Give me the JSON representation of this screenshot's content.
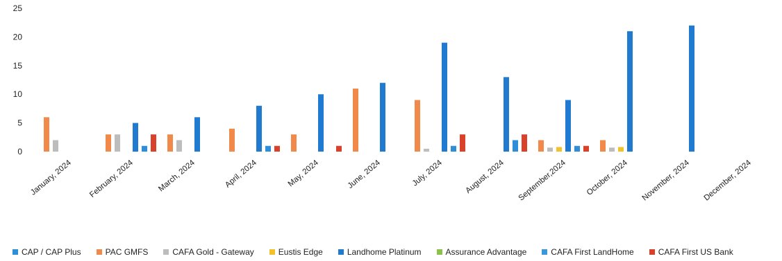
{
  "chart_data": {
    "type": "bar",
    "categories": [
      "January, 2024",
      "February, 2024",
      "March, 2024",
      "April, 2024",
      "May, 2024",
      "June, 2024",
      "July, 2024",
      "August, 2024",
      "September,2024",
      "October, 2024",
      "November, 2024",
      "December, 2024"
    ],
    "ylim": [
      0,
      25
    ],
    "yticks": [
      0,
      5,
      10,
      15,
      20,
      25
    ],
    "grid": false,
    "legend_position": "bottom",
    "series": [
      {
        "name": "CAP / CAP Plus",
        "color": "#2E8FD8",
        "values": [
          0,
          1,
          0,
          1,
          0,
          0,
          1,
          2,
          1,
          0,
          0,
          0
        ]
      },
      {
        "name": "PAC GMFS",
        "color": "#F0894A",
        "values": [
          6,
          3,
          3,
          4,
          3,
          11,
          9,
          0,
          2,
          2,
          0,
          0
        ]
      },
      {
        "name": "CAFA Gold - Gateway",
        "color": "#BDBDBD",
        "values": [
          2,
          3,
          2,
          0,
          0,
          0,
          0.5,
          0,
          0.7,
          0.7,
          0,
          0
        ]
      },
      {
        "name": "Eustis Edge",
        "color": "#F2C12E",
        "values": [
          0,
          0,
          0,
          0,
          0,
          0,
          0,
          0,
          0.8,
          0.8,
          0,
          0
        ]
      },
      {
        "name": "Landhome Platinum",
        "color": "#1F7AD0",
        "values": [
          0,
          5,
          6,
          8,
          10,
          12,
          19,
          13,
          9,
          21,
          22,
          0
        ]
      },
      {
        "name": "Assurance Advantage",
        "color": "#8BC34A",
        "values": [
          0,
          0,
          0,
          0,
          0,
          0,
          0,
          0,
          0,
          0,
          0,
          0
        ]
      },
      {
        "name": "CAFA First LandHome",
        "color": "#3D98DB",
        "values": [
          0,
          0,
          0,
          0,
          0,
          0,
          0,
          0,
          0,
          0,
          0,
          0
        ]
      },
      {
        "name": "CAFA First US Bank",
        "color": "#D9412B",
        "values": [
          0,
          3,
          0,
          1,
          1,
          0,
          3,
          3,
          1,
          0,
          0,
          0
        ]
      }
    ]
  }
}
